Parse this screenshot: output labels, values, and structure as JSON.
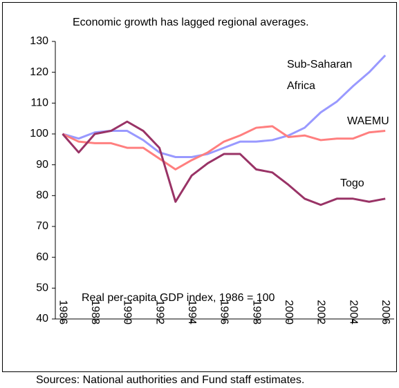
{
  "chart_data": {
    "type": "line",
    "title": "Economic growth has lagged regional averages.",
    "annotation": "Real per-capita GDP index, 1986 = 100",
    "source": "Sources: National authorities and Fund staff estimates.",
    "x": [
      1986,
      1987,
      1988,
      1989,
      1990,
      1991,
      1992,
      1993,
      1994,
      1995,
      1996,
      1997,
      1998,
      1999,
      2000,
      2001,
      2002,
      2003,
      2004,
      2005,
      2006
    ],
    "xlim": [
      1985.55,
      2006.55
    ],
    "xticks": [
      1986,
      1988,
      1990,
      1992,
      1994,
      1996,
      1998,
      2000,
      2002,
      2004,
      2006
    ],
    "ylim": [
      40,
      130
    ],
    "yticks": [
      40,
      50,
      60,
      70,
      80,
      90,
      100,
      110,
      120,
      130
    ],
    "series": [
      {
        "name": "Sub-Saharan Africa",
        "color": "#9999ff",
        "values": [
          100,
          98.5,
          100.5,
          101,
          101,
          98,
          94,
          92.5,
          92.5,
          93.5,
          95.5,
          97.5,
          97.5,
          98,
          99.5,
          102,
          107,
          110.5,
          115.5,
          120,
          125.5
        ]
      },
      {
        "name": "WAEMU",
        "color": "#ff7f7f",
        "values": [
          100,
          97.5,
          97,
          97,
          95.5,
          95.5,
          92,
          88.5,
          91.5,
          94,
          97.5,
          99.5,
          102,
          102.5,
          99,
          99.5,
          98,
          98.5,
          98.5,
          100.5,
          101
        ]
      },
      {
        "name": "Togo",
        "color": "#993366",
        "values": [
          100,
          94,
          100,
          101,
          104,
          101,
          95.5,
          78,
          86.5,
          90.5,
          93.5,
          93.5,
          88.5,
          87.5,
          83.5,
          79,
          77,
          79,
          79,
          78,
          79
        ]
      }
    ]
  }
}
